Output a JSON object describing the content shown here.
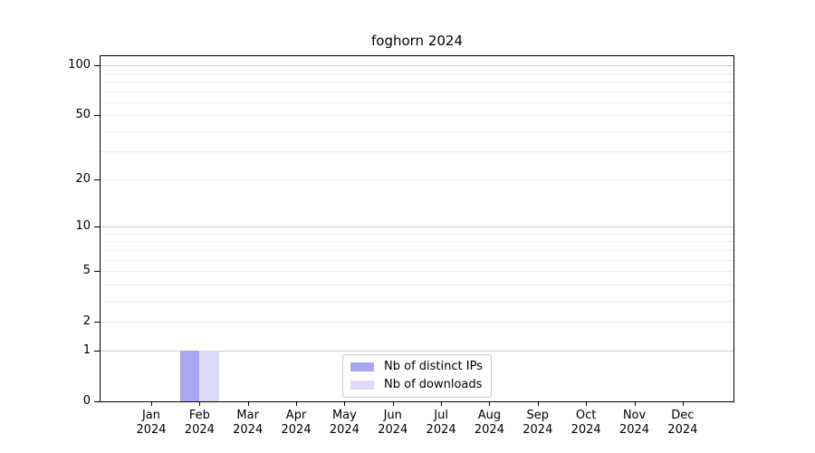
{
  "chart_data": {
    "type": "bar",
    "title": "foghorn 2024",
    "categories": [
      "Jan 2024",
      "Feb 2024",
      "Mar 2024",
      "Apr 2024",
      "May 2024",
      "Jun 2024",
      "Jul 2024",
      "Aug 2024",
      "Sep 2024",
      "Oct 2024",
      "Nov 2024",
      "Dec 2024"
    ],
    "series": [
      {
        "name": "Nb of distinct IPs",
        "color": "#a8a8f2",
        "values": [
          0,
          1,
          0,
          0,
          0,
          0,
          0,
          0,
          0,
          0,
          0,
          0
        ]
      },
      {
        "name": "Nb of downloads",
        "color": "#dcdcf8",
        "values": [
          0,
          1,
          0,
          0,
          0,
          0,
          0,
          0,
          0,
          0,
          0,
          0
        ]
      }
    ],
    "xlabel": "",
    "ylabel": "",
    "yscale": "log1p",
    "ylim": [
      0,
      115
    ],
    "y_ticks": [
      0,
      1,
      2,
      5,
      10,
      20,
      50,
      100
    ],
    "y_major_grid": [
      1,
      10,
      100
    ],
    "y_minor_grid": [
      2,
      3,
      4,
      5,
      6,
      7,
      8,
      9,
      20,
      30,
      40,
      50,
      60,
      70,
      80,
      90
    ],
    "grid": true,
    "legend_position": "lower center"
  },
  "colors": {
    "major_grid": "#cccccc",
    "minor_grid": "#ebebeb",
    "spine": "#000000",
    "background": "#ffffff",
    "text": "#000000",
    "legend_border": "#cccccc"
  }
}
